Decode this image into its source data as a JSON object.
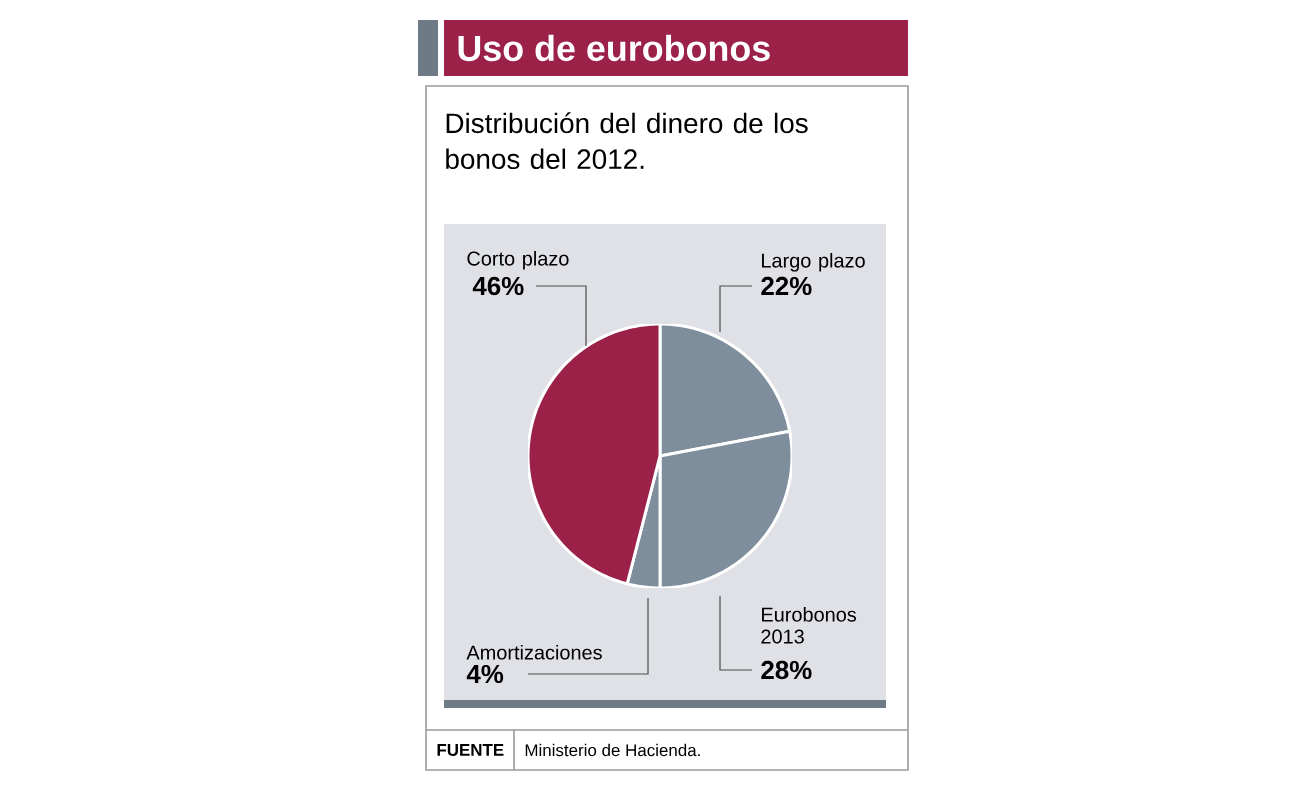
{
  "chart_data": {
    "type": "pie",
    "title": "Uso de eurobonos",
    "subtitle": "Distribución del dinero de los bonos del 2012.",
    "categories": [
      "Largo plazo",
      "Eurobonos 2013",
      "Amortizaciones",
      "Corto plazo"
    ],
    "values": [
      22,
      28,
      4,
      46
    ],
    "value_labels": [
      "22%",
      "28%",
      "4%",
      "46%"
    ],
    "colors": [
      "#7f8e9c",
      "#7f8e9c",
      "#7f8e9c",
      "#9b2148"
    ],
    "annotations": [
      "FUENTE",
      "Ministerio de Hacienda."
    ]
  }
}
